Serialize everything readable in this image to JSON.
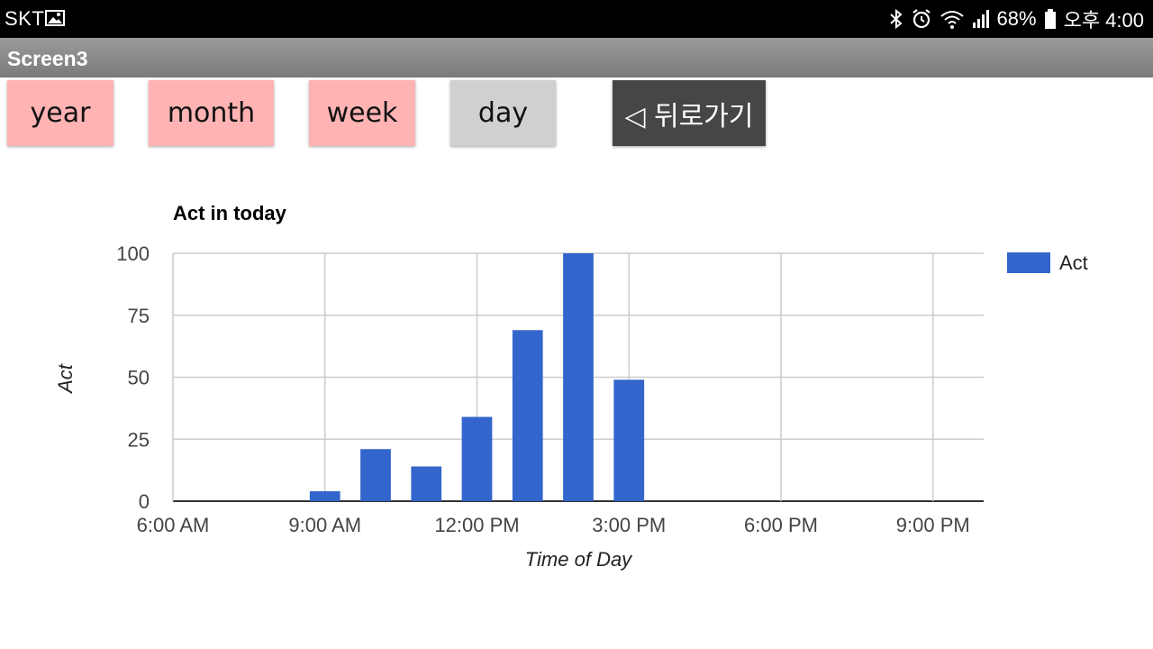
{
  "status_bar": {
    "carrier": "SKT",
    "battery": "68%",
    "time": "오후 4:00",
    "icons": [
      "gallery-icon",
      "bluetooth-icon",
      "alarm-icon",
      "wifi-icon",
      "signal-icon",
      "battery-icon"
    ]
  },
  "title_bar": {
    "title": "Screen3"
  },
  "buttons": {
    "year": "year",
    "month": "month",
    "week": "week",
    "day": "day",
    "back": "◁ 뒤로가기"
  },
  "colors": {
    "bar": "#3366cc",
    "button_active": "#ffb3b3",
    "button_selected": "#d0d0d0",
    "button_back": "#464646",
    "title_bar": "#888888"
  },
  "chart_data": {
    "type": "bar",
    "title": "Act in today",
    "xlabel": "Time of Day",
    "ylabel": "Act",
    "legend": {
      "entries": [
        "Act"
      ],
      "position": "right"
    },
    "grid": true,
    "xlim": [
      6,
      22
    ],
    "ylim": [
      0,
      100
    ],
    "x_ticks": [
      {
        "value": 6,
        "label": "6:00 AM"
      },
      {
        "value": 9,
        "label": "9:00 AM"
      },
      {
        "value": 12,
        "label": "12:00 PM"
      },
      {
        "value": 15,
        "label": "3:00 PM"
      },
      {
        "value": 18,
        "label": "6:00 PM"
      },
      {
        "value": 21,
        "label": "9:00 PM"
      }
    ],
    "y_ticks": [
      0,
      25,
      50,
      75,
      100
    ],
    "series": [
      {
        "name": "Act",
        "x": [
          9,
          10,
          11,
          12,
          13,
          14,
          15
        ],
        "values": [
          4,
          21,
          14,
          34,
          69,
          100,
          49
        ]
      }
    ]
  }
}
